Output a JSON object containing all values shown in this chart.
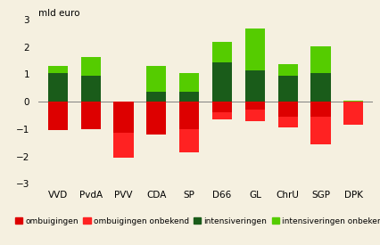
{
  "categories": [
    "VVD",
    "PvdA",
    "PVV",
    "CDA",
    "SP",
    "D66",
    "GL",
    "ChrU",
    "SGP",
    "DPK"
  ],
  "ombuigingen": [
    -1.05,
    -1.0,
    -1.15,
    -1.2,
    -1.0,
    -0.4,
    -0.3,
    -0.55,
    -0.55,
    0.0
  ],
  "ombuigingen_onbekend": [
    0.0,
    0.0,
    -0.9,
    0.0,
    -0.85,
    -0.25,
    -0.4,
    -0.4,
    -1.0,
    -0.85
  ],
  "intensiveringen": [
    1.05,
    0.95,
    0.0,
    0.35,
    0.35,
    1.45,
    1.15,
    0.95,
    1.05,
    0.0
  ],
  "intensiveringen_onbekend": [
    0.27,
    0.68,
    0.0,
    0.95,
    0.68,
    0.72,
    1.52,
    0.42,
    0.97,
    0.05
  ],
  "color_ombuigingen": "#dd0000",
  "color_ombuigingen_onbekend": "#ff2222",
  "color_intensiveringen": "#1a5c1a",
  "color_intensiveringen_onbekend": "#55cc00",
  "title": "mld euro",
  "ylim": [
    -3,
    3
  ],
  "yticks": [
    -3,
    -2,
    -1,
    0,
    1,
    2,
    3
  ],
  "background_color": "#f5f0e0",
  "legend_labels": [
    "ombuigingen",
    "ombuigingen onbekend",
    "intensiveringen",
    "intensiveringen onbekend"
  ],
  "legend_fontsize": 6.5,
  "axis_label_fontsize": 7.5,
  "title_fontsize": 7.5,
  "bar_width": 0.6
}
